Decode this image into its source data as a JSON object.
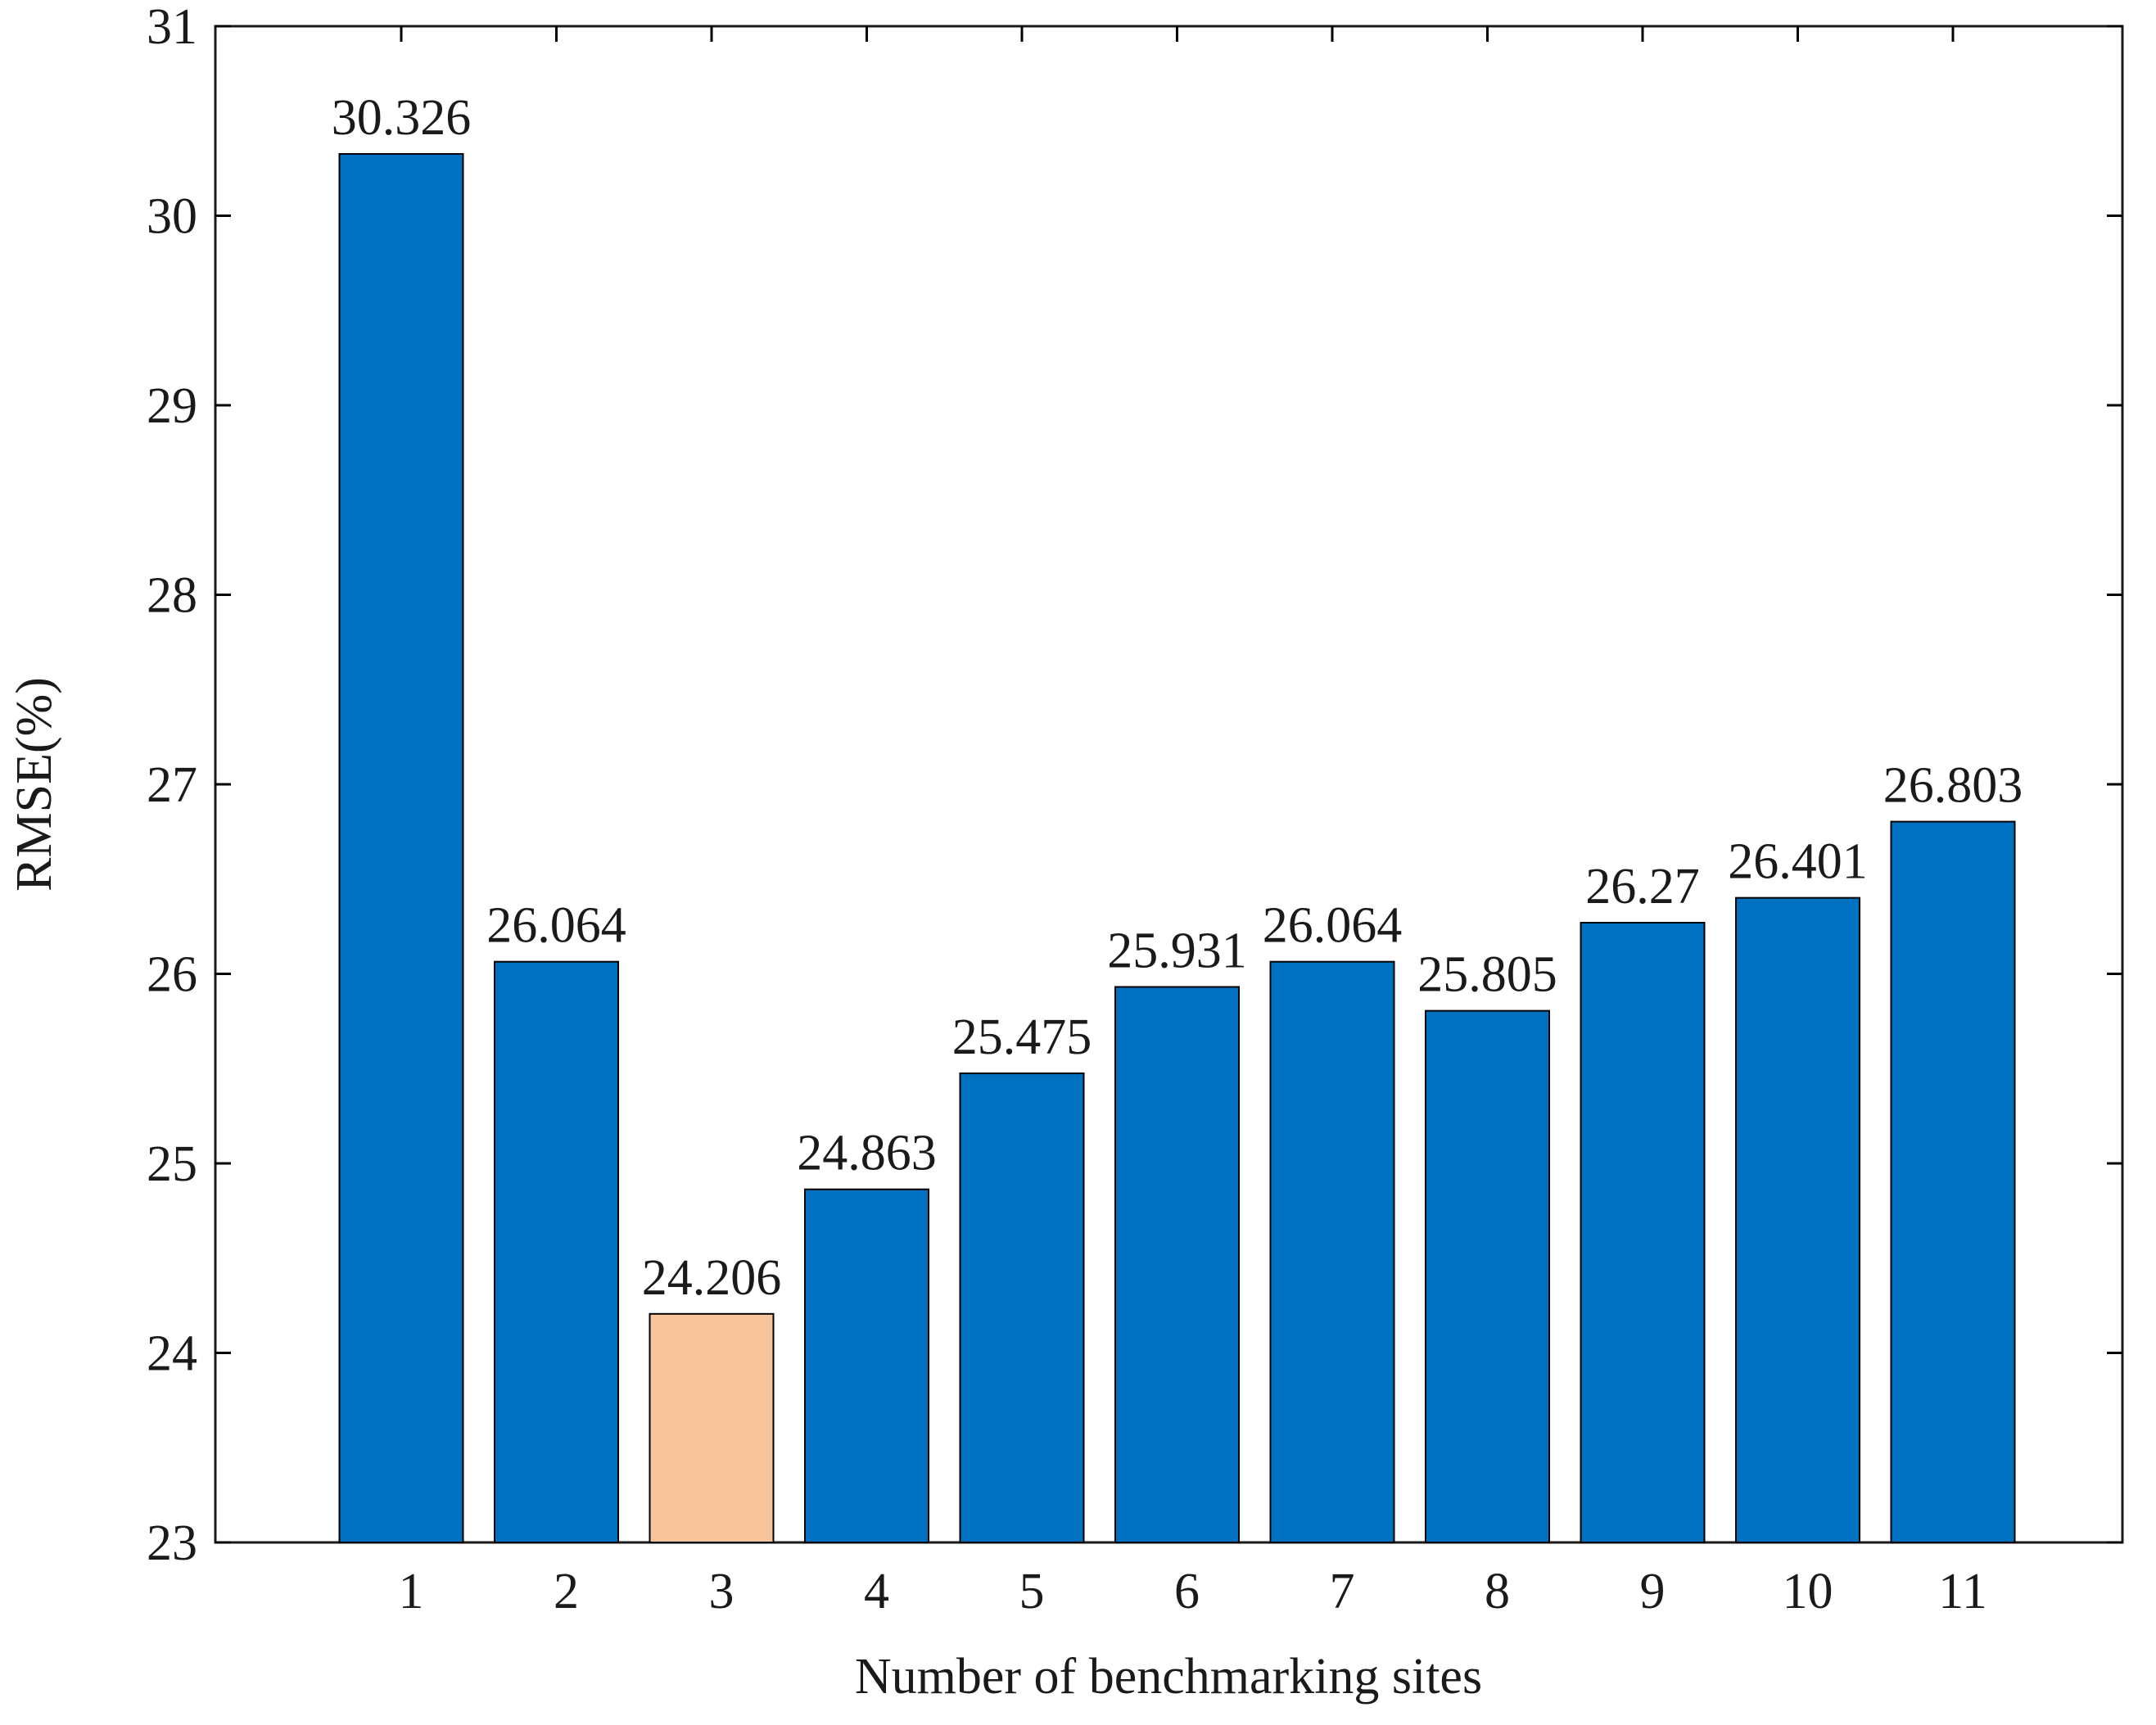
{
  "chart_data": {
    "type": "bar",
    "title": "",
    "xlabel": "Number of benchmarking sites",
    "ylabel": "RMSE(%)",
    "categories": [
      "1",
      "2",
      "3",
      "4",
      "5",
      "6",
      "7",
      "8",
      "9",
      "10",
      "11"
    ],
    "values": [
      30.326,
      26.064,
      24.206,
      24.863,
      25.475,
      25.931,
      26.064,
      25.805,
      26.27,
      26.401,
      26.803
    ],
    "value_labels": [
      "30.326",
      "26.064",
      "24.206",
      "24.863",
      "25.475",
      "25.931",
      "26.064",
      "25.805",
      "26.27",
      "26.401",
      "26.803"
    ],
    "ylim": [
      23,
      31
    ],
    "yticks": [
      23,
      24,
      25,
      26,
      27,
      28,
      29,
      30,
      31
    ],
    "grid": false,
    "colors": {
      "bar": "#0070c0",
      "highlight": "#f8c49c",
      "edge": "#000000",
      "axis": "#000000"
    },
    "highlight_index": 2
  }
}
